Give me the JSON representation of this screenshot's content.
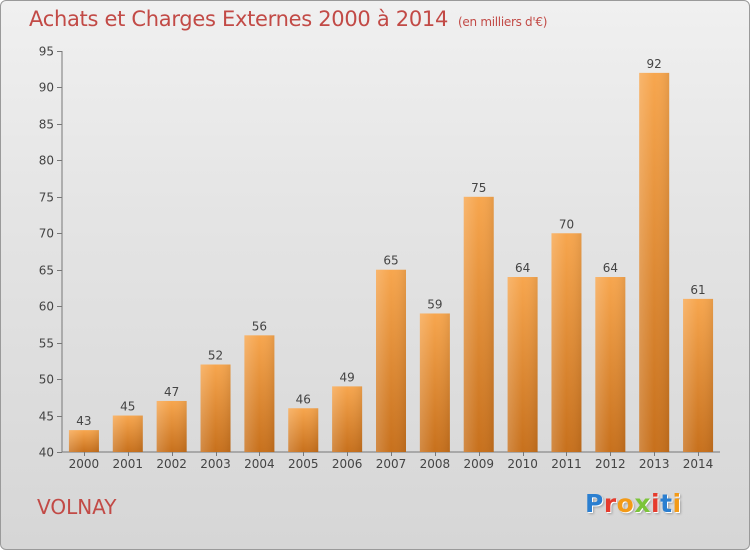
{
  "header": {
    "title": "Achats et Charges Externes 2000 à 2014",
    "subtitle": "(en milliers d'€)"
  },
  "footer": {
    "commune": "VOLNAY",
    "logo_letters": [
      "P",
      "r",
      "o",
      "x",
      "i",
      "t",
      "i"
    ]
  },
  "colors": {
    "accent": "#c24a46",
    "bar_light": "#f7a64e",
    "bar_dark": "#c7701c",
    "logo": [
      "#2b7fd0",
      "#e53c2e",
      "#f39a17",
      "#7cc43a",
      "#e53c2e",
      "#2b7fd0",
      "#f39a17"
    ]
  },
  "chart_data": {
    "type": "bar",
    "categories": [
      "2000",
      "2001",
      "2002",
      "2003",
      "2004",
      "2005",
      "2006",
      "2007",
      "2008",
      "2009",
      "2010",
      "2011",
      "2012",
      "2013",
      "2014"
    ],
    "values": [
      43,
      45,
      47,
      52,
      56,
      46,
      49,
      65,
      59,
      75,
      64,
      70,
      64,
      92,
      61
    ],
    "ylim": [
      40,
      95
    ],
    "yticks": [
      40,
      45,
      50,
      55,
      60,
      65,
      70,
      75,
      80,
      85,
      90,
      95
    ],
    "grid": false,
    "xlabel": "",
    "ylabel": ""
  }
}
